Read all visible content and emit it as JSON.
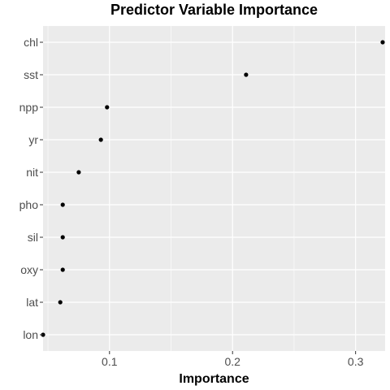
{
  "chart_data": {
    "type": "scatter",
    "title": "Predictor Variable Importance",
    "xlabel": "Importance",
    "ylabel": "",
    "xlim": [
      0.046,
      0.324
    ],
    "x_ticks": [
      0.1,
      0.2,
      0.3
    ],
    "x_tick_labels": [
      "0.1",
      "0.2",
      "0.3"
    ],
    "categories": [
      "chl",
      "sst",
      "npp",
      "yr",
      "nit",
      "pho",
      "sil",
      "oxy",
      "lat",
      "lon"
    ],
    "values": [
      0.322,
      0.211,
      0.098,
      0.093,
      0.075,
      0.062,
      0.062,
      0.062,
      0.06,
      0.046
    ],
    "grid": true,
    "legend": "none"
  },
  "style": {
    "panel_bg": "#ebebeb",
    "grid_color": "#ffffff",
    "point_color": "#000000",
    "tick_color": "#333333"
  }
}
